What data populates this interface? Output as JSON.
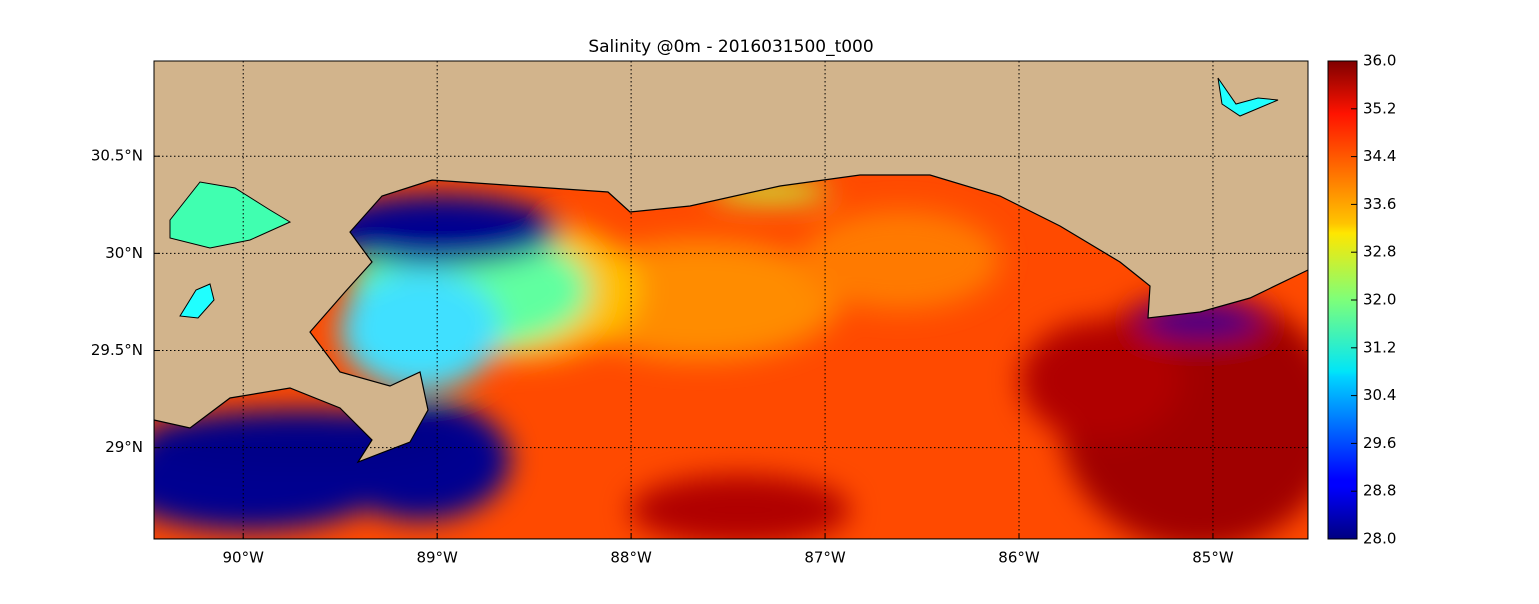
{
  "chart_data": {
    "type": "heatmap",
    "title": "Salinity @0m - 2016031500_t000",
    "xlim": [
      -90.46,
      -84.51
    ],
    "ylim": [
      28.53,
      30.99
    ],
    "xticks": [
      {
        "value": -90,
        "label": "90°W"
      },
      {
        "value": -89,
        "label": "89°W"
      },
      {
        "value": -88,
        "label": "88°W"
      },
      {
        "value": -87,
        "label": "87°W"
      },
      {
        "value": -86,
        "label": "86°W"
      },
      {
        "value": -85,
        "label": "85°W"
      }
    ],
    "yticks": [
      {
        "value": 29,
        "label": "29°N"
      },
      {
        "value": 29.5,
        "label": "29.5°N"
      },
      {
        "value": 30,
        "label": "30°N"
      },
      {
        "value": 30.5,
        "label": "30.5°N"
      }
    ],
    "grid": true,
    "colormap": "jet",
    "clim": [
      28,
      36
    ],
    "cticks": [
      {
        "value": 28,
        "label": "28.0"
      },
      {
        "value": 28.8,
        "label": "28.8"
      },
      {
        "value": 29.6,
        "label": "29.6"
      },
      {
        "value": 30.4,
        "label": "30.4"
      },
      {
        "value": 31.2,
        "label": "31.2"
      },
      {
        "value": 32,
        "label": "32.0"
      },
      {
        "value": 32.8,
        "label": "32.8"
      },
      {
        "value": 33.6,
        "label": "33.6"
      },
      {
        "value": 34.4,
        "label": "34.4"
      },
      {
        "value": 35.2,
        "label": "35.2"
      },
      {
        "value": 36,
        "label": "36.0"
      }
    ]
  }
}
